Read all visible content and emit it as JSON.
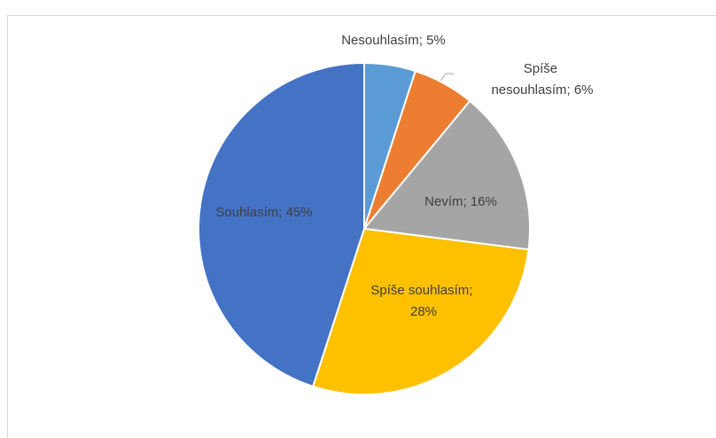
{
  "chart_data": {
    "type": "pie",
    "values": [
      5,
      6,
      16,
      28,
      45
    ],
    "value_labels": [
      "Nesouhlasím; 5%",
      "Spíše nesouhlasím; 6%",
      "Nevím; 16%",
      "Spíše souhlasím; 28%",
      "Souhlasím; 45%"
    ],
    "colors": [
      "#5b9bd5",
      "#ed7d31",
      "#a5a5a5",
      "#ffc000",
      "#4472c4"
    ],
    "start_angle": 0,
    "direction": "clockwise"
  }
}
